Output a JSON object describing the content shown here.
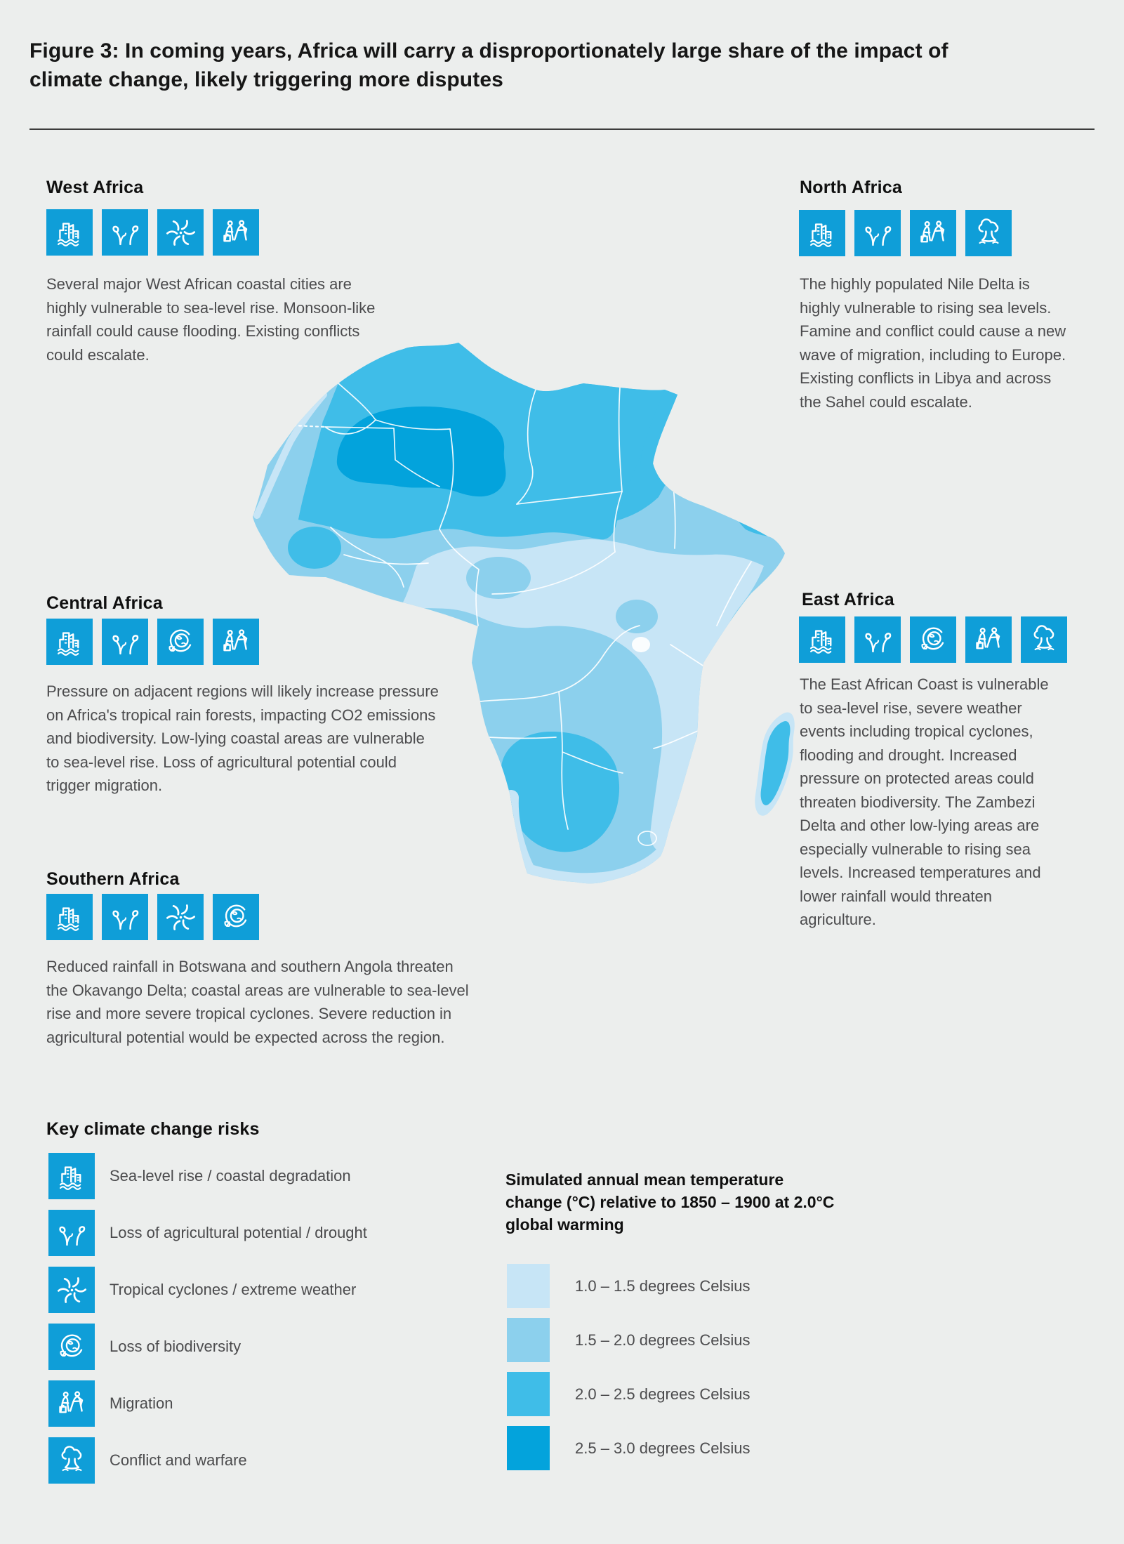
{
  "page": {
    "title": "Figure 3: In coming years, Africa will carry a disproportionately large share of the impact of climate change, likely triggering more disputes",
    "background": "#eceeed",
    "rule_color": "#3c3c3c"
  },
  "icon_style": {
    "background": "#0f9ed8",
    "glyph": "#ffffff"
  },
  "regions": [
    {
      "name": "West Africa",
      "risks": [
        "sea-level-rise",
        "drought",
        "cyclone",
        "migration"
      ],
      "text": "Several major West African coastal cities are highly vulnerable to sea-level rise. Monsoon-like rainfall could cause flooding. Existing conflicts could escalate."
    },
    {
      "name": "North Africa",
      "risks": [
        "sea-level-rise",
        "drought",
        "migration",
        "conflict"
      ],
      "text": "The highly populated Nile Delta is highly vulnerable to rising sea levels. Famine and conflict could cause a new wave of migration, including to Europe. Existing conflicts in Libya and across the Sahel could escalate."
    },
    {
      "name": "Central Africa",
      "risks": [
        "sea-level-rise",
        "drought",
        "biodiversity",
        "migration"
      ],
      "text": "Pressure on adjacent regions will likely increase pressure on Africa's tropical rain forests, impacting CO2 emissions and biodiversity. Low-lying coastal areas are vulnerable to sea-level rise. Loss of agricultural potential could trigger migration."
    },
    {
      "name": "East Africa",
      "risks": [
        "sea-level-rise",
        "drought",
        "biodiversity",
        "migration",
        "conflict"
      ],
      "text": "The East African Coast is vulnerable to sea-level rise, severe weather events including tropical cyclones, flooding and drought. Increased pressure on protected areas could threaten biodiversity. The Zambezi Delta and other low-lying areas are especially vulnerable to rising sea levels. Increased temperatures and lower rainfall would threaten agriculture."
    },
    {
      "name": "Southern Africa",
      "risks": [
        "sea-level-rise",
        "drought",
        "cyclone",
        "biodiversity"
      ],
      "text": "Reduced rainfall in Botswana and southern Angola threaten the Okavango Delta; coastal areas are vulnerable to sea-level rise and more severe tropical cyclones. Severe reduction in agricultural potential would be expected across the region."
    }
  ],
  "risk_legend": {
    "heading": "Key climate change risks",
    "items": [
      {
        "icon": "sea-level-rise",
        "label": "Sea-level rise / coastal degradation"
      },
      {
        "icon": "drought",
        "label": "Loss of agricultural potential / drought"
      },
      {
        "icon": "cyclone",
        "label": "Tropical cyclones / extreme weather"
      },
      {
        "icon": "biodiversity",
        "label": "Loss of biodiversity"
      },
      {
        "icon": "migration",
        "label": "Migration"
      },
      {
        "icon": "conflict",
        "label": "Conflict and warfare"
      }
    ]
  },
  "temperature_legend": {
    "title": "Simulated annual mean temperature change (°C) relative to 1850 – 1900 at 2.0°C global warming",
    "classes": [
      {
        "label": "1.0 – 1.5 degrees Celsius",
        "color": "#c7e5f6"
      },
      {
        "label": "1.5 – 2.0 degrees Celsius",
        "color": "#8cd0ed"
      },
      {
        "label": "2.0 – 2.5 degrees Celsius",
        "color": "#3fbde8"
      },
      {
        "label": "2.5 – 3.0 degrees Celsius",
        "color": "#03a3dc"
      }
    ]
  },
  "map": {
    "subject": "Africa shaded by simulated annual mean temperature change at 2.0°C global warming",
    "border_color": "#ffffff",
    "zones": [
      {
        "class": "2.5 – 3.0",
        "area": "Central-western Sahara (Mali / Algeria / Niger interior)"
      },
      {
        "class": "2.0 – 2.5",
        "area": "North Africa belt from Morocco through Libya and Egypt, incl. Egyptian Red Sea coast"
      },
      {
        "class": "2.0 – 2.5",
        "area": "Guinea highlands patch"
      },
      {
        "class": "2.0 – 2.5",
        "area": "Namibia, Botswana and interior South Africa"
      },
      {
        "class": "2.0 – 2.5",
        "area": "Madagascar interior"
      },
      {
        "class": "1.5 – 2.0",
        "area": "Sahel, West African coast and central-southern Africa (base shading)"
      },
      {
        "class": "1.0 – 1.5",
        "area": "Congo basin, South Sudan, Horn interior, East African coastal strip and far southern coast"
      }
    ],
    "features": [
      "white country borders",
      "dashed Western Sahara boundary",
      "Lesotho outline",
      "Lake Victoria"
    ]
  }
}
